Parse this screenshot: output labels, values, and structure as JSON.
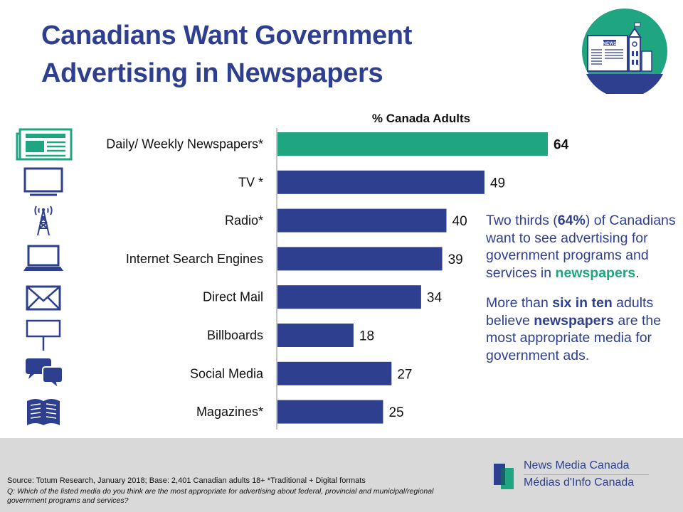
{
  "title": "Canadians Want Government Advertising in Newspapers",
  "badge": {
    "icon": "newspaper-parliament-icon",
    "text": "NEWS",
    "bg_color": "#1fa57f",
    "accent_color": "#2e3f8f"
  },
  "chart_data": {
    "type": "bar",
    "orientation": "horizontal",
    "title": "% Canada Adults",
    "categories": [
      "Daily/ Weekly Newspapers*",
      "TV *",
      "Radio*",
      "Internet Search Engines",
      "Direct Mail",
      "Billboards",
      "Social Media",
      "Magazines*"
    ],
    "values": [
      64,
      49,
      40,
      39,
      34,
      18,
      27,
      25
    ],
    "icons": [
      "newspaper-icon",
      "tv-icon",
      "radio-tower-icon",
      "laptop-icon",
      "envelope-icon",
      "billboard-icon",
      "chat-bubbles-icon",
      "open-book-icon"
    ],
    "highlight_index": 0,
    "colors": {
      "bar": "#2e3f8f",
      "highlight": "#1fa57f"
    },
    "xlim": [
      0,
      64
    ],
    "grid": false
  },
  "commentary": {
    "p1": {
      "a": "Two thirds (",
      "b": "64%",
      "c": ") of Canadians want to see advertising for government programs and services in ",
      "d": "newspapers",
      "e": "."
    },
    "p2": {
      "a": "More than ",
      "b": "six in ten",
      "c": " adults believe ",
      "d": "newspapers",
      "e": " are the most appropriate media for government ads."
    }
  },
  "footer": {
    "source": "Source: Totum Research, January 2018; Base: 2,401 Canadian adults 18+ *Traditional + Digital formats",
    "question": "Q: Which of the listed media do you think are the most appropriate for advertising about federal, provincial and municipal/regional government programs and services?",
    "logo": {
      "en": "News Media Canada",
      "fr": "Médias d'Info Canada"
    }
  }
}
